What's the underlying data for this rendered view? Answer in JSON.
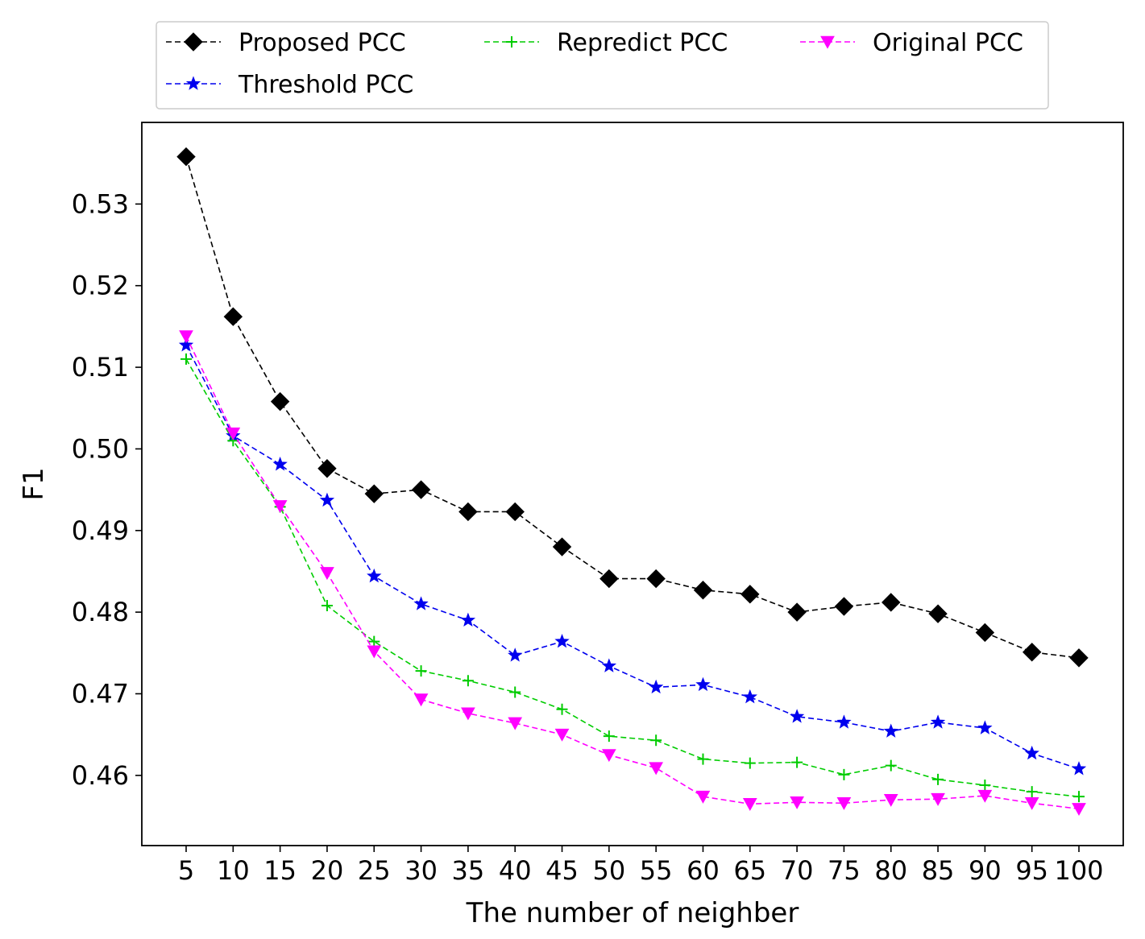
{
  "chart_data": {
    "type": "line",
    "xlabel": "The number of neighber",
    "ylabel": "F1",
    "x": [
      5,
      10,
      15,
      20,
      25,
      30,
      35,
      40,
      45,
      50,
      55,
      60,
      65,
      70,
      75,
      80,
      85,
      90,
      95,
      100
    ],
    "yticks": [
      0.46,
      0.47,
      0.48,
      0.49,
      0.5,
      0.51,
      0.52,
      0.53
    ],
    "ylim": [
      0.4514,
      0.54
    ],
    "legend_position": "top",
    "grid": false,
    "series": [
      {
        "name": "Proposed PCC",
        "color": "#000000",
        "marker": "diamond",
        "values": [
          0.5358,
          0.5162,
          0.5058,
          0.4976,
          0.4945,
          0.495,
          0.4923,
          0.4923,
          0.488,
          0.4841,
          0.4841,
          0.4827,
          0.4822,
          0.48,
          0.4807,
          0.4812,
          0.4798,
          0.4775,
          0.4751,
          0.4744
        ]
      },
      {
        "name": "Threshold PCC",
        "color": "#0000ee",
        "marker": "star",
        "values": [
          0.5127,
          0.5016,
          0.4981,
          0.4937,
          0.4844,
          0.481,
          0.479,
          0.4747,
          0.4764,
          0.4734,
          0.4708,
          0.4711,
          0.4696,
          0.4672,
          0.4665,
          0.4654,
          0.4665,
          0.4658,
          0.4627,
          0.4608
        ]
      },
      {
        "name": "Repredict PCC",
        "color": "#00cc00",
        "marker": "plus",
        "values": [
          0.511,
          0.501,
          0.4929,
          0.4808,
          0.4764,
          0.4728,
          0.4716,
          0.4702,
          0.4681,
          0.4648,
          0.4643,
          0.462,
          0.4615,
          0.4616,
          0.4601,
          0.4612,
          0.4595,
          0.4588,
          0.458,
          0.4574
        ]
      },
      {
        "name": "Original PCC",
        "color": "#ff00ff",
        "marker": "triangle-down",
        "values": [
          0.5138,
          0.5019,
          0.493,
          0.4848,
          0.4752,
          0.4693,
          0.4676,
          0.4664,
          0.465,
          0.4625,
          0.4609,
          0.4574,
          0.4565,
          0.4567,
          0.4566,
          0.457,
          0.4571,
          0.4575,
          0.4566,
          0.4559
        ]
      }
    ]
  }
}
